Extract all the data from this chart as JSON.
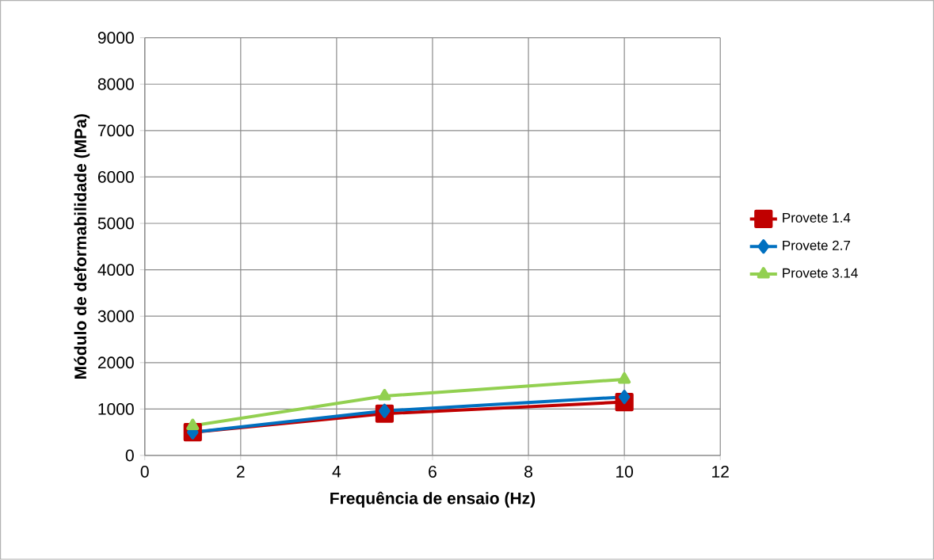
{
  "chart_data": {
    "type": "line",
    "xlabel": "Frequência de ensaio (Hz)",
    "ylabel": "Módulo de deformabilidade (MPa)",
    "x": [
      1,
      5,
      10
    ],
    "series": [
      {
        "name": "Provete 1.4",
        "color": "#c00000",
        "marker": "square",
        "values": [
          500,
          900,
          1150
        ]
      },
      {
        "name": "Provete 2.7",
        "color": "#0070c0",
        "marker": "diamond",
        "values": [
          500,
          960,
          1260
        ]
      },
      {
        "name": "Provete 3.14",
        "color": "#92d050",
        "marker": "triangle",
        "values": [
          640,
          1280,
          1640
        ]
      }
    ],
    "xlim": [
      0,
      12
    ],
    "xticks": [
      0,
      2,
      4,
      6,
      8,
      10,
      12
    ],
    "ylim": [
      0,
      9000
    ],
    "yticks": [
      0,
      1000,
      2000,
      3000,
      4000,
      5000,
      6000,
      7000,
      8000,
      9000
    ],
    "grid": true,
    "legend": "right",
    "line_style": "solid"
  }
}
